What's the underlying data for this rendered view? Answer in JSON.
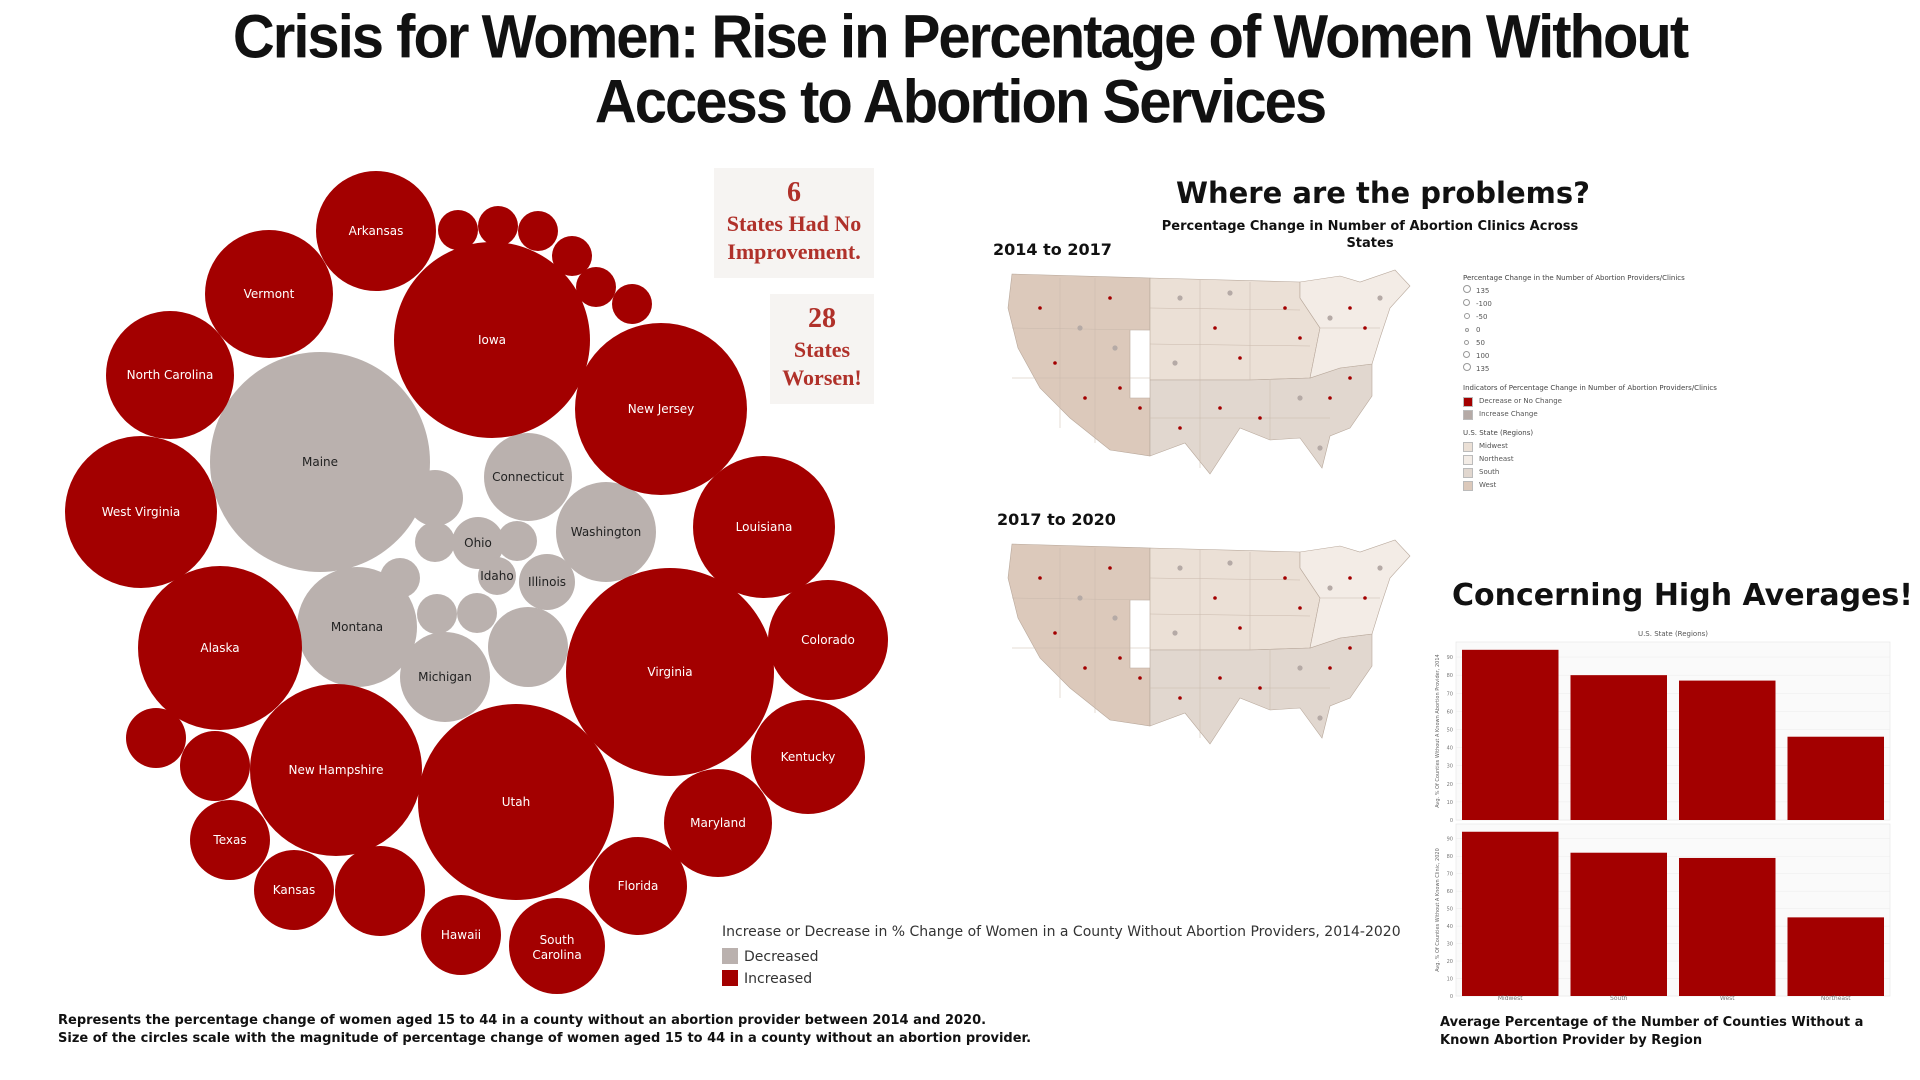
{
  "title_line1": "Crisis for Women: Rise in Percentage of Women Without",
  "title_line2": "Access to Abortion Services",
  "stats": [
    {
      "number": "6",
      "line1": "States Had No",
      "line2": "Improvement."
    },
    {
      "number": "28",
      "line1": "States",
      "line2": "Worsen!"
    }
  ],
  "colors": {
    "increased": "#a30000",
    "decreased": "#bab1ae",
    "title_red": "#b0312a",
    "map_west": "#dcc9bb",
    "map_midwest": "#ebe0d6",
    "map_south": "#e1d7cf",
    "map_northeast": "#f3ece6"
  },
  "chart_data": [
    {
      "type": "bubble",
      "title": "Increase or Decrease in % Change of Women in a County Without Abortion Providers, 2014-2020",
      "legend": [
        {
          "name": "Decreased",
          "color": "#bab1ae"
        },
        {
          "name": "Increased",
          "color": "#a30000"
        }
      ],
      "bubbles": [
        {
          "label": "Maine",
          "category": "Decreased"
        },
        {
          "label": "Connecticut",
          "category": "Decreased"
        },
        {
          "label": "Washington",
          "category": "Decreased"
        },
        {
          "label": "Ohio",
          "category": "Decreased"
        },
        {
          "label": "Idaho",
          "category": "Decreased"
        },
        {
          "label": "Illinois",
          "category": "Decreased"
        },
        {
          "label": "Montana",
          "category": "Decreased"
        },
        {
          "label": "Michigan",
          "category": "Decreased"
        },
        {
          "label": "",
          "category": "Decreased"
        },
        {
          "label": "",
          "category": "Decreased"
        },
        {
          "label": "",
          "category": "Decreased"
        },
        {
          "label": "",
          "category": "Decreased"
        },
        {
          "label": "",
          "category": "Decreased"
        },
        {
          "label": "",
          "category": "Decreased"
        },
        {
          "label": "",
          "category": "Decreased"
        },
        {
          "label": "Arkansas",
          "category": "Increased"
        },
        {
          "label": "Vermont",
          "category": "Increased"
        },
        {
          "label": "Iowa",
          "category": "Increased"
        },
        {
          "label": "North Carolina",
          "category": "Increased"
        },
        {
          "label": "New Jersey",
          "category": "Increased"
        },
        {
          "label": "West Virginia",
          "category": "Increased"
        },
        {
          "label": "Louisiana",
          "category": "Increased"
        },
        {
          "label": "Alaska",
          "category": "Increased"
        },
        {
          "label": "Colorado",
          "category": "Increased"
        },
        {
          "label": "Virginia",
          "category": "Increased"
        },
        {
          "label": "New Hampshire",
          "category": "Increased"
        },
        {
          "label": "Kentucky",
          "category": "Increased"
        },
        {
          "label": "Utah",
          "category": "Increased"
        },
        {
          "label": "Maryland",
          "category": "Increased"
        },
        {
          "label": "Texas",
          "category": "Increased"
        },
        {
          "label": "Kansas",
          "category": "Increased"
        },
        {
          "label": "Florida",
          "category": "Increased"
        },
        {
          "label": "Hawaii",
          "category": "Increased"
        },
        {
          "label": "South Carolina",
          "category": "Increased"
        },
        {
          "label": "",
          "category": "Increased"
        },
        {
          "label": "",
          "category": "Increased"
        },
        {
          "label": "",
          "category": "Increased"
        },
        {
          "label": "",
          "category": "Increased"
        },
        {
          "label": "",
          "category": "Increased"
        },
        {
          "label": "",
          "category": "Increased"
        },
        {
          "label": "",
          "category": "Increased"
        },
        {
          "label": "",
          "category": "Increased"
        },
        {
          "label": "",
          "category": "Increased"
        }
      ]
    },
    {
      "type": "bar",
      "title": "Average Percentage of the Number of Counties Without a Known Abortion Provider by Region",
      "header": "U.S. State (Regions)",
      "categories": [
        "Midwest",
        "South",
        "West",
        "Northeast"
      ],
      "series": [
        {
          "ylabel": "Avg. % Of Counties Without A Known Abortion Provider, 2014",
          "values": [
            94,
            80,
            77,
            46
          ]
        },
        {
          "ylabel": "Avg. % Of Counties Without A Known Clinic, 2020",
          "values": [
            94,
            82,
            79,
            45
          ]
        }
      ],
      "ylim": [
        0,
        95
      ],
      "yticks": [
        0,
        10,
        20,
        30,
        40,
        50,
        60,
        70,
        80,
        90
      ],
      "color": "#a30000"
    }
  ],
  "bubble_chart_footnote_line1": "Represents the percentage change of women aged 15 to 44 in a county without an abortion provider between 2014 and 2020.",
  "bubble_chart_footnote_line2": "Size of the circles scale with the magnitude of percentage change of women aged 15 to 44 in a county without an abortion provider.",
  "maps": {
    "heading": "Where are the problems?",
    "subtitle": "Percentage Change in Number of Abortion Clinics Across States",
    "period1": "2014 to 2017",
    "period2": "2017 to 2020",
    "legend": {
      "size_title": "Percentage Change in the Number of Abortion Providers/Clinics",
      "size_values": [
        "135",
        "-100",
        "-50",
        "0",
        "50",
        "100",
        "135"
      ],
      "indicator_title": "Indicators of Percentage Change in Number of Abortion Providers/Clinics",
      "indicators": [
        {
          "label": "Decrease or No Change",
          "color": "#a30000"
        },
        {
          "label": "Increase Change",
          "color": "#b5aaa6"
        }
      ],
      "region_title": "U.S. State (Regions)",
      "regions": [
        {
          "label": "Midwest",
          "color": "#ebe0d6"
        },
        {
          "label": "Northeast",
          "color": "#f3ece6"
        },
        {
          "label": "South",
          "color": "#e1d7cf"
        },
        {
          "label": "West",
          "color": "#dcc9bb"
        }
      ]
    }
  },
  "bar_heading": "Concerning High Averages!"
}
